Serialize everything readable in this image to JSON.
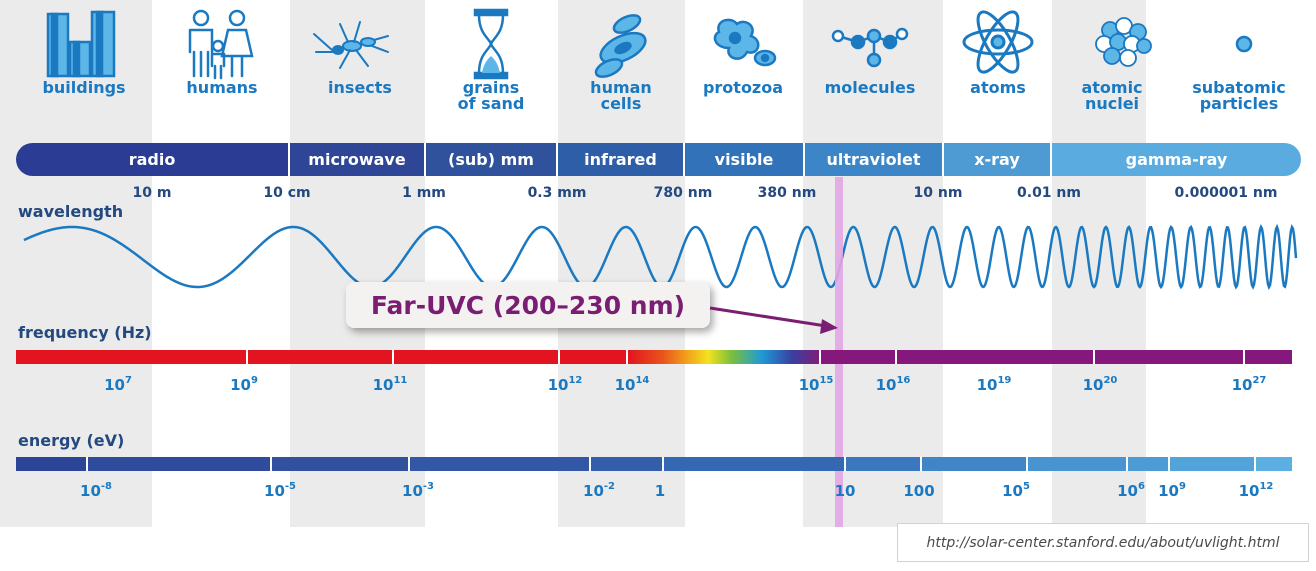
{
  "categories": [
    {
      "label": "buildings",
      "icon": "buildings-icon"
    },
    {
      "label": "humans",
      "icon": "humans-icon"
    },
    {
      "label": "insects",
      "icon": "insect-icon"
    },
    {
      "label": "grains\nof sand",
      "icon": "hourglass-icon"
    },
    {
      "label": "human\ncells",
      "icon": "cells-icon"
    },
    {
      "label": "protozoa",
      "icon": "protozoa-icon"
    },
    {
      "label": "molecules",
      "icon": "molecule-icon"
    },
    {
      "label": "atoms",
      "icon": "atom-icon"
    },
    {
      "label": "atomic\nnuclei",
      "icon": "nucleus-icon"
    },
    {
      "label": "subatomic\nparticles",
      "icon": "particle-icon"
    }
  ],
  "bands": [
    {
      "label": "radio",
      "color": "#2b3c94"
    },
    {
      "label": "microwave",
      "color": "#2f4595"
    },
    {
      "label": "(sub) mm",
      "color": "#30519c"
    },
    {
      "label": "infrared",
      "color": "#2f5ea8"
    },
    {
      "label": "visible",
      "color": "#3172b8"
    },
    {
      "label": "ultraviolet",
      "color": "#3c85c6"
    },
    {
      "label": "x-ray",
      "color": "#4e9ad3"
    },
    {
      "label": "gamma-ray",
      "color": "#5aabe0"
    }
  ],
  "wavelength": {
    "title": "wavelength",
    "ticks": [
      "10 m",
      "10 cm",
      "1 mm",
      "0.3 mm",
      "780 nm",
      "380 nm",
      "10 nm",
      "0.01 nm",
      "0.000001 nm"
    ]
  },
  "callout": {
    "label": "Far-UVC (200–230 nm)",
    "color": "#7a1e73"
  },
  "frequency": {
    "title": "frequency (Hz)",
    "ticks": [
      {
        "base": "10",
        "exp": "7"
      },
      {
        "base": "10",
        "exp": "9"
      },
      {
        "base": "10",
        "exp": "11"
      },
      {
        "base": "10",
        "exp": "12"
      },
      {
        "base": "10",
        "exp": "14"
      },
      {
        "base": "10",
        "exp": "15"
      },
      {
        "base": "10",
        "exp": "16"
      },
      {
        "base": "10",
        "exp": "19"
      },
      {
        "base": "10",
        "exp": "20"
      },
      {
        "base": "10",
        "exp": "27"
      }
    ]
  },
  "energy": {
    "title": "energy (eV)",
    "ticks": [
      {
        "base": "10",
        "exp": "-8"
      },
      {
        "base": "10",
        "exp": "-5"
      },
      {
        "base": "10",
        "exp": "-3"
      },
      {
        "base": "10",
        "exp": "-2"
      },
      {
        "base": "1",
        "exp": ""
      },
      {
        "base": "10",
        "exp": ""
      },
      {
        "base": "100",
        "exp": ""
      },
      {
        "base": "10",
        "exp": "5"
      },
      {
        "base": "10",
        "exp": "6"
      },
      {
        "base": "10",
        "exp": "9"
      },
      {
        "base": "10",
        "exp": "12"
      }
    ]
  },
  "source_url": "http://solar-center.stanford.edu/about/uvlight.html"
}
